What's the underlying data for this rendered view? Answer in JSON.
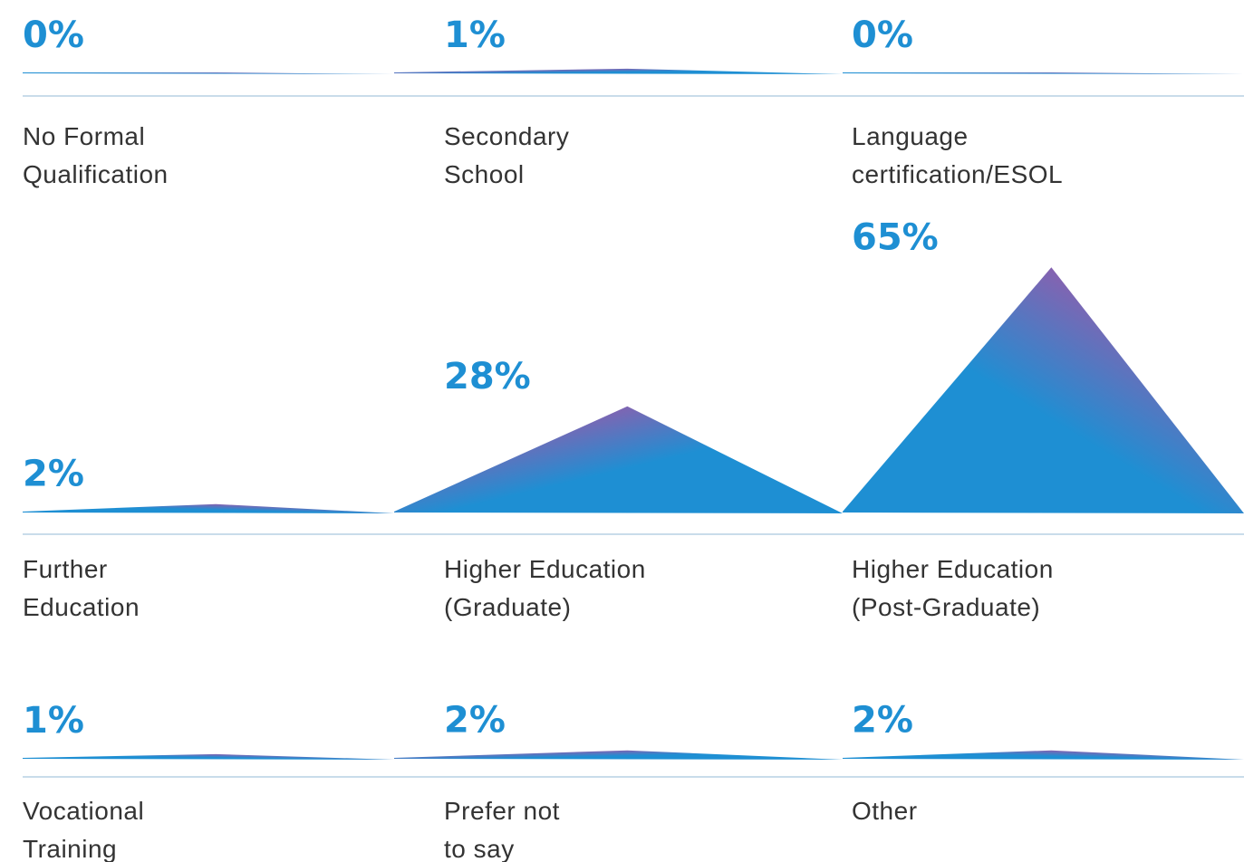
{
  "chart_data": {
    "type": "peaks",
    "categories": [
      [
        "No Formal",
        "Qualification"
      ],
      [
        "Secondary",
        "School"
      ],
      [
        "Language",
        "certification/ESOL"
      ],
      [
        "Further",
        "Education"
      ],
      [
        "Higher Education",
        "(Graduate)"
      ],
      [
        "Higher Education",
        "(Post-Graduate)"
      ],
      [
        "Vocational",
        "Training"
      ],
      [
        "Prefer not",
        "to say"
      ],
      [
        "Other"
      ]
    ],
    "values": [
      0,
      1,
      0,
      2,
      28,
      65,
      1,
      2,
      2
    ],
    "value_labels": [
      "0%",
      "1%",
      "0%",
      "2%",
      "28%",
      "65%",
      "1%",
      "2%",
      "2%"
    ],
    "colors": [
      "#d63f95",
      "#1e8fd3"
    ]
  }
}
